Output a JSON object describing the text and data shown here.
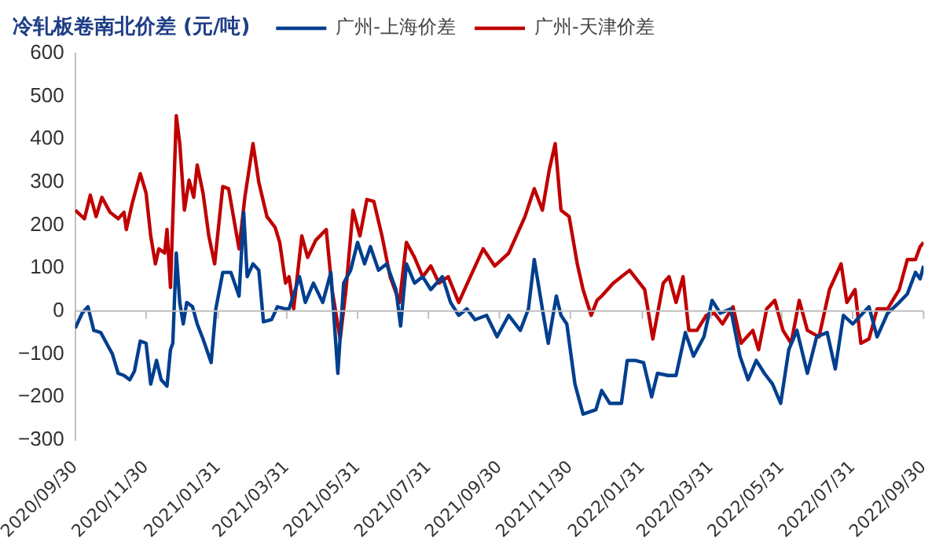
{
  "chart_data": {
    "type": "line",
    "title": "冷轧板卷南北价差 (元/吨)",
    "xlim": [
      "2020-09-30",
      "2022-09-30"
    ],
    "xticks": [
      {
        "value": "2020-09-30",
        "label": "2020/09/30"
      },
      {
        "value": "2020-11-30",
        "label": "2020/11/30"
      },
      {
        "value": "2021-01-31",
        "label": "2021/01/31"
      },
      {
        "value": "2021-03-31",
        "label": "2021/03/31"
      },
      {
        "value": "2021-05-31",
        "label": "2021/05/31"
      },
      {
        "value": "2021-07-31",
        "label": "2021/07/31"
      },
      {
        "value": "2021-09-30",
        "label": "2021/09/30"
      },
      {
        "value": "2021-11-30",
        "label": "2021/11/30"
      },
      {
        "value": "2022-01-31",
        "label": "2022/01/31"
      },
      {
        "value": "2022-03-31",
        "label": "2022/03/31"
      },
      {
        "value": "2022-05-31",
        "label": "2022/05/31"
      },
      {
        "value": "2022-07-31",
        "label": "2022/07/31"
      },
      {
        "value": "2022-09-30",
        "label": "2022/09/30"
      }
    ],
    "ylim": [
      -300,
      600
    ],
    "yticks": [
      -300,
      -200,
      -100,
      0,
      100,
      200,
      300,
      400,
      500,
      600
    ],
    "legend": "top",
    "marker": "none",
    "line_style": "solid",
    "series": [
      {
        "name": "广州-上海价差",
        "color": "#003f8f",
        "x": [
          "2020-09-30",
          "2020-10-06",
          "2020-10-11",
          "2020-10-16",
          "2020-10-22",
          "2020-10-27",
          "2020-11-01",
          "2020-11-06",
          "2020-11-11",
          "2020-11-16",
          "2020-11-20",
          "2020-11-25",
          "2020-11-30",
          "2020-12-04",
          "2020-12-09",
          "2020-12-13",
          "2020-12-18",
          "2020-12-21",
          "2020-12-23",
          "2020-12-26",
          "2020-12-29",
          "2021-01-01",
          "2021-01-04",
          "2021-01-09",
          "2021-01-13",
          "2021-01-18",
          "2021-01-25",
          "2021-01-29",
          "2021-02-04",
          "2021-02-11",
          "2021-02-18",
          "2021-02-22",
          "2021-02-25",
          "2021-03-02",
          "2021-03-07",
          "2021-03-11",
          "2021-03-18",
          "2021-03-23",
          "2021-03-30",
          "2021-04-02",
          "2021-04-11",
          "2021-04-16",
          "2021-04-23",
          "2021-05-01",
          "2021-05-08",
          "2021-05-14",
          "2021-05-19",
          "2021-05-25",
          "2021-05-31",
          "2021-06-06",
          "2021-06-11",
          "2021-06-18",
          "2021-06-25",
          "2021-07-03",
          "2021-07-07",
          "2021-07-12",
          "2021-07-19",
          "2021-07-26",
          "2021-08-02",
          "2021-08-12",
          "2021-08-19",
          "2021-08-26",
          "2021-09-02",
          "2021-09-09",
          "2021-09-19",
          "2021-09-28",
          "2021-10-08",
          "2021-10-18",
          "2021-10-25",
          "2021-10-30",
          "2021-11-06",
          "2021-11-11",
          "2021-11-18",
          "2021-11-22",
          "2021-11-27",
          "2021-12-04",
          "2021-12-11",
          "2021-12-22",
          "2021-12-27",
          "2022-01-03",
          "2022-01-13",
          "2022-01-18",
          "2022-01-25",
          "2022-02-01",
          "2022-02-08",
          "2022-02-13",
          "2022-02-22",
          "2022-03-01",
          "2022-03-09",
          "2022-03-16",
          "2022-03-25",
          "2022-04-01",
          "2022-04-08",
          "2022-04-17",
          "2022-04-25",
          "2022-05-02",
          "2022-05-09",
          "2022-05-16",
          "2022-05-23",
          "2022-05-30",
          "2022-06-06",
          "2022-06-13",
          "2022-06-22",
          "2022-06-30",
          "2022-07-09",
          "2022-07-16",
          "2022-07-23",
          "2022-07-31",
          "2022-08-07",
          "2022-08-14",
          "2022-08-21",
          "2022-08-30",
          "2022-09-09",
          "2022-09-16",
          "2022-09-23",
          "2022-09-27",
          "2022-09-30"
        ],
        "values": [
          -40,
          -5,
          10,
          -45,
          -50,
          -75,
          -100,
          -145,
          -150,
          -160,
          -140,
          -70,
          -75,
          -170,
          -115,
          -160,
          -175,
          -90,
          -75,
          135,
          20,
          -30,
          20,
          10,
          -30,
          -65,
          -120,
          5,
          90,
          90,
          35,
          230,
          80,
          110,
          95,
          -25,
          -20,
          10,
          5,
          5,
          80,
          20,
          65,
          20,
          90,
          -145,
          65,
          95,
          160,
          110,
          150,
          95,
          110,
          50,
          -35,
          110,
          65,
          80,
          50,
          80,
          20,
          -10,
          5,
          -20,
          -10,
          -60,
          -10,
          -45,
          5,
          120,
          5,
          -75,
          35,
          -10,
          -30,
          -170,
          -240,
          -230,
          -185,
          -215,
          -215,
          -115,
          -115,
          -120,
          -200,
          -145,
          -150,
          -150,
          -50,
          -105,
          -60,
          25,
          -5,
          5,
          -105,
          -160,
          -115,
          -145,
          -170,
          -215,
          -90,
          -45,
          -145,
          -60,
          -50,
          -135,
          -10,
          -30,
          -10,
          10,
          -60,
          -5,
          20,
          40,
          90,
          75,
          105
        ]
      },
      {
        "name": "广州-天津价差",
        "color": "#c00000",
        "x": [
          "2020-09-30",
          "2020-10-08",
          "2020-10-13",
          "2020-10-18",
          "2020-10-23",
          "2020-10-30",
          "2020-11-06",
          "2020-11-11",
          "2020-11-13",
          "2020-11-18",
          "2020-11-25",
          "2020-11-30",
          "2020-12-04",
          "2020-12-08",
          "2020-12-11",
          "2020-12-16",
          "2020-12-18",
          "2020-12-21",
          "2020-12-26",
          "2020-12-29",
          "2021-01-02",
          "2021-01-06",
          "2021-01-10",
          "2021-01-13",
          "2021-01-18",
          "2021-01-23",
          "2021-01-28",
          "2021-02-04",
          "2021-02-09",
          "2021-02-18",
          "2021-02-23",
          "2021-03-02",
          "2021-03-07",
          "2021-03-14",
          "2021-03-21",
          "2021-03-25",
          "2021-03-30",
          "2021-04-02",
          "2021-04-06",
          "2021-04-13",
          "2021-04-18",
          "2021-04-25",
          "2021-05-04",
          "2021-05-09",
          "2021-05-16",
          "2021-05-21",
          "2021-05-27",
          "2021-06-02",
          "2021-06-08",
          "2021-06-14",
          "2021-06-21",
          "2021-06-28",
          "2021-07-06",
          "2021-07-12",
          "2021-07-19",
          "2021-07-26",
          "2021-08-02",
          "2021-08-09",
          "2021-08-17",
          "2021-08-26",
          "2021-09-05",
          "2021-09-16",
          "2021-09-26",
          "2021-10-08",
          "2021-10-22",
          "2021-10-30",
          "2021-11-06",
          "2021-11-12",
          "2021-11-17",
          "2021-11-22",
          "2021-11-29",
          "2021-12-06",
          "2021-12-11",
          "2021-12-18",
          "2021-12-23",
          "2021-12-27",
          "2022-01-06",
          "2022-01-20",
          "2022-02-02",
          "2022-02-09",
          "2022-02-18",
          "2022-02-23",
          "2022-03-01",
          "2022-03-07",
          "2022-03-12",
          "2022-03-19",
          "2022-03-27",
          "2022-04-03",
          "2022-04-10",
          "2022-04-19",
          "2022-04-26",
          "2022-05-06",
          "2022-05-11",
          "2022-05-18",
          "2022-05-25",
          "2022-06-01",
          "2022-06-08",
          "2022-06-15",
          "2022-06-22",
          "2022-07-02",
          "2022-07-11",
          "2022-07-21",
          "2022-07-26",
          "2022-08-02",
          "2022-08-07",
          "2022-08-14",
          "2022-08-21",
          "2022-08-30",
          "2022-09-09",
          "2022-09-16",
          "2022-09-23",
          "2022-09-27",
          "2022-09-30"
        ],
        "values": [
          235,
          215,
          270,
          220,
          265,
          230,
          215,
          230,
          190,
          250,
          320,
          275,
          175,
          110,
          145,
          135,
          190,
          55,
          455,
          390,
          235,
          305,
          265,
          340,
          275,
          175,
          110,
          290,
          285,
          145,
          265,
          390,
          300,
          220,
          195,
          160,
          65,
          80,
          5,
          175,
          125,
          165,
          190,
          50,
          -65,
          50,
          235,
          175,
          260,
          255,
          175,
          80,
          20,
          160,
          125,
          80,
          105,
          65,
          80,
          20,
          80,
          145,
          105,
          135,
          220,
          285,
          235,
          330,
          390,
          235,
          220,
          110,
          50,
          -10,
          25,
          35,
          65,
          95,
          50,
          -65,
          65,
          80,
          20,
          80,
          -45,
          -45,
          -10,
          -5,
          -30,
          10,
          -75,
          -45,
          -90,
          5,
          25,
          -45,
          -75,
          25,
          -45,
          -60,
          50,
          110,
          20,
          50,
          -75,
          -65,
          5,
          5,
          50,
          120,
          120,
          150,
          160
        ]
      }
    ]
  }
}
